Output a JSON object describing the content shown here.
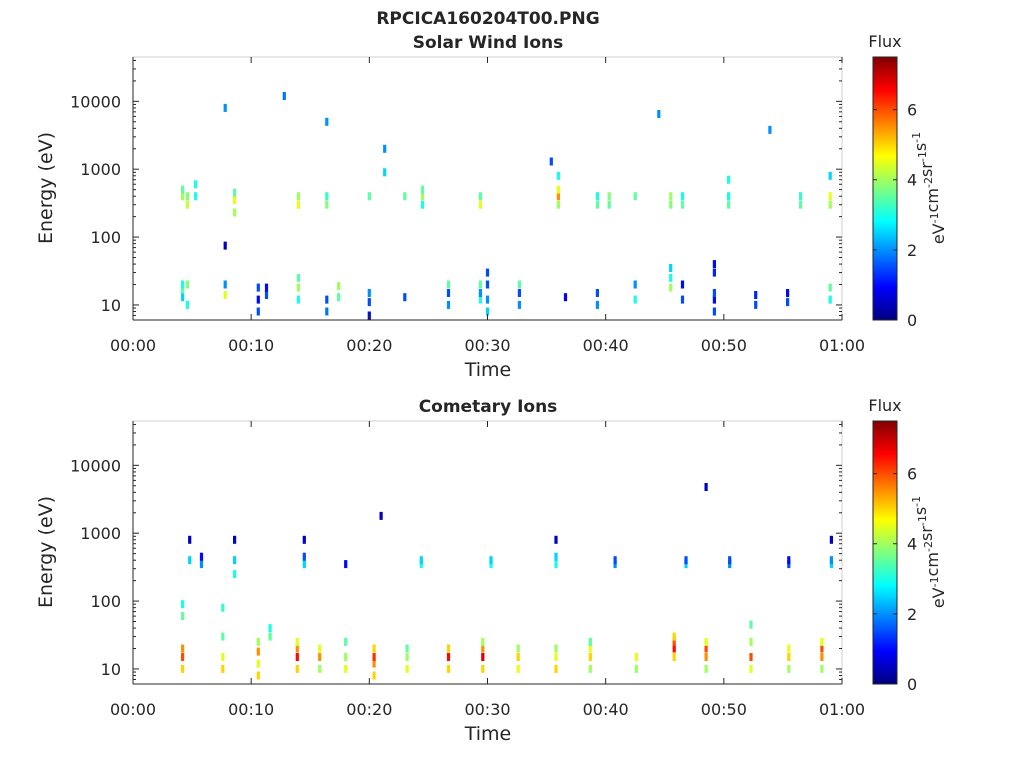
{
  "figure": {
    "title": "RPCICA160204T00.PNG"
  },
  "colormap": [
    "#00007f",
    "#0000ff",
    "#007fff",
    "#00ffff",
    "#7fff7f",
    "#ffff00",
    "#ff7f00",
    "#ff0000",
    "#7f0000"
  ],
  "chart_data": [
    {
      "type": "heatmap",
      "title": "Solar Wind Ions",
      "xlabel": "Time",
      "ylabel": "Energy (eV)",
      "yscale": "log",
      "ylim": [
        6,
        45000
      ],
      "xlim": [
        0,
        60
      ],
      "x_ticks": [
        "00:00",
        "00:10",
        "00:20",
        "00:30",
        "00:40",
        "00:50",
        "01:00"
      ],
      "y_ticks": [
        "10",
        "100",
        "1000",
        "10000"
      ],
      "colorbar": {
        "title": "Flux",
        "label": "eV-1cm-2sr-1s-1",
        "range": [
          0,
          7.5
        ],
        "ticks": [
          "0",
          "2",
          "4",
          "6"
        ]
      },
      "grid": false,
      "columns": [
        {
          "t": 4.2,
          "e": [
            13,
            17,
            20,
            400,
            500
          ],
          "f": [
            2.5,
            3.5,
            3,
            4,
            3.5
          ]
        },
        {
          "t": 4.6,
          "e": [
            10,
            20,
            300,
            400
          ],
          "f": [
            3,
            3.8,
            4.3,
            3.8
          ]
        },
        {
          "t": 5.3,
          "e": [
            400,
            600
          ],
          "f": [
            3,
            3
          ]
        },
        {
          "t": 7.8,
          "e": [
            14,
            20,
            75,
            8000
          ],
          "f": [
            4.5,
            2,
            0.5,
            2
          ]
        },
        {
          "t": 8.6,
          "e": [
            230,
            350,
            450
          ],
          "f": [
            4,
            4.5,
            3.5
          ]
        },
        {
          "t": 10.6,
          "e": [
            8,
            12,
            18
          ],
          "f": [
            1.5,
            1,
            1.5
          ]
        },
        {
          "t": 11.3,
          "e": [
            14,
            18
          ],
          "f": [
            1.5,
            1
          ]
        },
        {
          "t": 12.8,
          "e": [
            12000
          ],
          "f": [
            1.8
          ]
        },
        {
          "t": 14.0,
          "e": [
            12,
            18,
            25,
            300,
            400
          ],
          "f": [
            3,
            4,
            3.5,
            4.5,
            4
          ]
        },
        {
          "t": 16.4,
          "e": [
            8,
            12,
            300,
            400,
            5000
          ],
          "f": [
            1.8,
            1.5,
            3.8,
            3.2,
            2
          ]
        },
        {
          "t": 17.4,
          "e": [
            13,
            19
          ],
          "f": [
            3.5,
            4
          ]
        },
        {
          "t": 20.0,
          "e": [
            7,
            11,
            15,
            400
          ],
          "f": [
            1,
            1.5,
            2,
            3.5
          ]
        },
        {
          "t": 21.3,
          "e": [
            900,
            2000
          ],
          "f": [
            2.5,
            2
          ]
        },
        {
          "t": 23.0,
          "e": [
            13,
            400
          ],
          "f": [
            1.5,
            3.5
          ]
        },
        {
          "t": 24.5,
          "e": [
            300,
            400,
            500
          ],
          "f": [
            3,
            4,
            3.5
          ]
        },
        {
          "t": 26.7,
          "e": [
            10,
            15,
            20
          ],
          "f": [
            2,
            1.5,
            3.5
          ]
        },
        {
          "t": 29.4,
          "e": [
            12,
            15,
            20,
            300,
            400
          ],
          "f": [
            3,
            2,
            3.5,
            4.5,
            3.5
          ]
        },
        {
          "t": 30.0,
          "e": [
            8,
            12,
            20,
            30
          ],
          "f": [
            2.5,
            2,
            1.5,
            1.5
          ]
        },
        {
          "t": 32.7,
          "e": [
            10,
            15,
            20
          ],
          "f": [
            2,
            1.5,
            3.5
          ]
        },
        {
          "t": 35.4,
          "e": [
            1300
          ],
          "f": [
            1.5
          ]
        },
        {
          "t": 36.0,
          "e": [
            300,
            400,
            500,
            800
          ],
          "f": [
            4,
            5.5,
            4.5,
            3
          ]
        },
        {
          "t": 36.6,
          "e": [
            13
          ],
          "f": [
            0.8
          ]
        },
        {
          "t": 39.3,
          "e": [
            10,
            15,
            300,
            400
          ],
          "f": [
            2,
            1.5,
            3.5,
            3
          ]
        },
        {
          "t": 40.3,
          "e": [
            300,
            400
          ],
          "f": [
            3.5,
            3.8
          ]
        },
        {
          "t": 42.5,
          "e": [
            12,
            20,
            400
          ],
          "f": [
            3,
            2,
            3.5
          ]
        },
        {
          "t": 44.5,
          "e": [
            6500
          ],
          "f": [
            2
          ]
        },
        {
          "t": 45.5,
          "e": [
            18,
            25,
            35,
            300,
            400
          ],
          "f": [
            4,
            3,
            2.5,
            3.8,
            4
          ]
        },
        {
          "t": 46.5,
          "e": [
            12,
            20,
            300,
            400
          ],
          "f": [
            1.5,
            1,
            3.5,
            3
          ]
        },
        {
          "t": 49.2,
          "e": [
            8,
            12,
            15,
            30,
            40
          ],
          "f": [
            1.5,
            1,
            1.5,
            1.2,
            1
          ]
        },
        {
          "t": 50.4,
          "e": [
            300,
            400,
            700
          ],
          "f": [
            3.5,
            3,
            3
          ]
        },
        {
          "t": 52.7,
          "e": [
            10,
            14
          ],
          "f": [
            1.5,
            1.2
          ]
        },
        {
          "t": 53.9,
          "e": [
            3800
          ],
          "f": [
            2
          ]
        },
        {
          "t": 55.4,
          "e": [
            11,
            15
          ],
          "f": [
            1.5,
            1
          ]
        },
        {
          "t": 56.5,
          "e": [
            300,
            400
          ],
          "f": [
            3.5,
            3.2
          ]
        },
        {
          "t": 59.0,
          "e": [
            12,
            18,
            300,
            400,
            800
          ],
          "f": [
            3,
            3.5,
            4,
            4.5,
            2.5
          ]
        }
      ]
    },
    {
      "type": "heatmap",
      "title": "Cometary Ions",
      "xlabel": "Time",
      "ylabel": "Energy (eV)",
      "yscale": "log",
      "ylim": [
        6,
        45000
      ],
      "xlim": [
        0,
        60
      ],
      "x_ticks": [
        "00:00",
        "00:10",
        "00:20",
        "00:30",
        "00:40",
        "00:50",
        "01:00"
      ],
      "y_ticks": [
        "10",
        "100",
        "1000",
        "10000"
      ],
      "colorbar": {
        "title": "Flux",
        "label": "eV-1cm-2sr-1s-1",
        "range": [
          0,
          7.5
        ],
        "ticks": [
          "0",
          "2",
          "4",
          "6"
        ]
      },
      "grid": false,
      "columns": [
        {
          "t": 4.2,
          "e": [
            10,
            15,
            20,
            60,
            90
          ],
          "f": [
            5,
            6,
            5.5,
            3.5,
            3
          ]
        },
        {
          "t": 4.8,
          "e": [
            400,
            800
          ],
          "f": [
            2.5,
            0.5
          ]
        },
        {
          "t": 5.8,
          "e": [
            350,
            450
          ],
          "f": [
            2,
            1
          ]
        },
        {
          "t": 7.6,
          "e": [
            10,
            15,
            30,
            80
          ],
          "f": [
            5,
            4.5,
            3.5,
            3.2
          ]
        },
        {
          "t": 8.6,
          "e": [
            250,
            400,
            800
          ],
          "f": [
            3,
            2.5,
            0.5
          ]
        },
        {
          "t": 10.6,
          "e": [
            8,
            12,
            18,
            25
          ],
          "f": [
            5,
            4.5,
            5.5,
            4
          ]
        },
        {
          "t": 11.6,
          "e": [
            30,
            40
          ],
          "f": [
            3.5,
            3
          ]
        },
        {
          "t": 13.9,
          "e": [
            10,
            15,
            20,
            25
          ],
          "f": [
            5,
            6.5,
            5.5,
            4.5
          ]
        },
        {
          "t": 14.5,
          "e": [
            350,
            450,
            800
          ],
          "f": [
            2.5,
            1.5,
            0.5
          ]
        },
        {
          "t": 15.8,
          "e": [
            10,
            15,
            20
          ],
          "f": [
            4,
            5.5,
            4.5
          ]
        },
        {
          "t": 18.0,
          "e": [
            10,
            15,
            25,
            350
          ],
          "f": [
            4.5,
            4,
            3.5,
            1
          ]
        },
        {
          "t": 20.4,
          "e": [
            8,
            12,
            15,
            20
          ],
          "f": [
            5,
            5.5,
            6.2,
            5
          ]
        },
        {
          "t": 21.0,
          "e": [
            1800
          ],
          "f": [
            0.5
          ]
        },
        {
          "t": 23.2,
          "e": [
            10,
            15,
            20
          ],
          "f": [
            4.5,
            4,
            3.5
          ]
        },
        {
          "t": 24.4,
          "e": [
            350,
            400
          ],
          "f": [
            3,
            2.5
          ]
        },
        {
          "t": 26.7,
          "e": [
            10,
            15,
            20
          ],
          "f": [
            5,
            6.5,
            5
          ]
        },
        {
          "t": 29.6,
          "e": [
            10,
            15,
            20,
            25
          ],
          "f": [
            5,
            6.8,
            5.5,
            4
          ]
        },
        {
          "t": 30.3,
          "e": [
            350,
            400
          ],
          "f": [
            3,
            2.5
          ]
        },
        {
          "t": 32.6,
          "e": [
            10,
            15,
            20
          ],
          "f": [
            4.5,
            5,
            4
          ]
        },
        {
          "t": 35.8,
          "e": [
            10,
            15,
            20,
            350,
            450,
            800
          ],
          "f": [
            5,
            4.5,
            4,
            3,
            2.5,
            0.5
          ]
        },
        {
          "t": 38.7,
          "e": [
            10,
            15,
            20,
            25
          ],
          "f": [
            4,
            5,
            4.5,
            3.5
          ]
        },
        {
          "t": 40.8,
          "e": [
            350,
            400
          ],
          "f": [
            2,
            1.5
          ]
        },
        {
          "t": 42.6,
          "e": [
            10,
            15
          ],
          "f": [
            4,
            4.5
          ]
        },
        {
          "t": 45.8,
          "e": [
            15,
            20,
            25,
            30
          ],
          "f": [
            5,
            6.5,
            6,
            5
          ]
        },
        {
          "t": 46.8,
          "e": [
            350,
            400
          ],
          "f": [
            2.5,
            1.5
          ]
        },
        {
          "t": 48.5,
          "e": [
            10,
            15,
            20,
            25,
            4800
          ],
          "f": [
            4,
            5.5,
            6,
            4.5,
            0.5
          ]
        },
        {
          "t": 50.5,
          "e": [
            350,
            400
          ],
          "f": [
            2,
            1.5
          ]
        },
        {
          "t": 52.3,
          "e": [
            10,
            15,
            25,
            45
          ],
          "f": [
            4.5,
            6,
            4,
            3.5
          ]
        },
        {
          "t": 55.5,
          "e": [
            10,
            15,
            20,
            350,
            400
          ],
          "f": [
            4,
            5,
            4.5,
            1.5,
            1
          ]
        },
        {
          "t": 58.3,
          "e": [
            10,
            15,
            20,
            25
          ],
          "f": [
            4,
            5.5,
            6,
            4.5
          ]
        },
        {
          "t": 59.1,
          "e": [
            350,
            400,
            800
          ],
          "f": [
            2.5,
            2,
            0.5
          ]
        }
      ]
    }
  ]
}
